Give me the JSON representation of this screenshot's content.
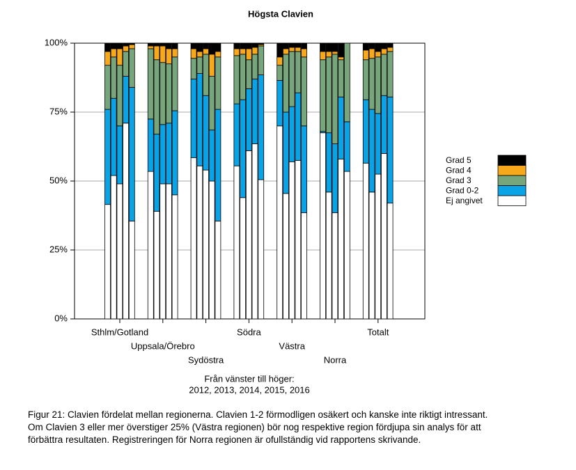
{
  "chart_data": {
    "type": "grouped-stacked-bar",
    "title": "Högsta Clavien",
    "categories": [
      "Sthlm/Gotland",
      "Uppsala/Örebro",
      "Sydöstra",
      "Södra",
      "Västra",
      "Norra",
      "Totalt"
    ],
    "xlabel": [
      "Från vänster till höger:",
      "2012, 2013, 2014, 2015, 2016"
    ],
    "ylim": [
      0,
      100
    ],
    "yticks": [
      {
        "value": 0,
        "label": "0%"
      },
      {
        "value": 25,
        "label": "25%"
      },
      {
        "value": 50,
        "label": "50%"
      },
      {
        "value": 75,
        "label": "75%"
      },
      {
        "value": 100,
        "label": "100%"
      }
    ],
    "grid": true,
    "legend": "right",
    "series": [
      {
        "name": "Ej angivet",
        "color": "#ffffff",
        "values": [
          [
            41.5,
            52,
            49,
            71,
            35.5
          ],
          [
            53.5,
            39,
            49,
            49,
            45
          ],
          [
            58.5,
            55.5,
            54,
            50,
            35.5
          ],
          [
            55.5,
            44,
            61,
            63.5,
            50.5
          ],
          [
            70,
            45.5,
            57,
            57.5,
            38.5
          ],
          [
            67.5,
            46,
            38.5,
            58,
            53.5
          ],
          [
            56.5,
            46,
            52.5,
            60,
            42
          ]
        ]
      },
      {
        "name": "Grad 0-2",
        "color": "#0aa4e6",
        "values": [
          [
            34.5,
            28,
            21,
            17,
            48.5
          ],
          [
            19,
            28,
            21.5,
            22,
            30.5
          ],
          [
            28.5,
            33.5,
            27,
            18.5,
            40.5
          ],
          [
            22.5,
            35.5,
            22.5,
            23.5,
            38
          ],
          [
            16.5,
            29.5,
            20,
            24.5,
            31.5
          ],
          [
            0.5,
            21.5,
            25,
            22.5,
            18
          ],
          [
            23,
            30,
            22,
            21,
            38.5
          ]
        ]
      },
      {
        "name": "Grad 3",
        "color": "#78a67c",
        "values": [
          [
            16,
            15,
            22,
            9,
            14
          ],
          [
            25.5,
            27,
            22.5,
            21.5,
            19.5
          ],
          [
            7.5,
            6,
            15,
            19.5,
            19
          ],
          [
            17.5,
            16.5,
            10.5,
            9,
            10.5
          ],
          [
            5.5,
            21,
            20,
            15,
            25
          ],
          [
            26,
            27.5,
            32.5,
            13.5,
            28.5
          ],
          [
            14.5,
            18.5,
            20.5,
            15,
            16.5
          ]
        ]
      },
      {
        "name": "Grad 4",
        "color": "#f7a81b",
        "values": [
          [
            5,
            3,
            6,
            2,
            1.5
          ],
          [
            1,
            5,
            6,
            5.5,
            3
          ],
          [
            3.5,
            2,
            2,
            8,
            2
          ],
          [
            2.5,
            2,
            4,
            2.5,
            0.5
          ],
          [
            3,
            2,
            1.5,
            1.5,
            3
          ],
          [
            3,
            2,
            1,
            1,
            0
          ],
          [
            3.5,
            3.5,
            2,
            2,
            1.5
          ]
        ]
      },
      {
        "name": "Grad 5",
        "color": "#000000",
        "values": [
          [
            3,
            2,
            2,
            1,
            0.5
          ],
          [
            1,
            1,
            1,
            2,
            2
          ],
          [
            2,
            3,
            2,
            4,
            3
          ],
          [
            2,
            2,
            2,
            1.5,
            0.5
          ],
          [
            5,
            2,
            1.5,
            1.5,
            2
          ],
          [
            3,
            3,
            3,
            5,
            0
          ],
          [
            2.5,
            2,
            3,
            2,
            1.5
          ]
        ]
      }
    ]
  },
  "caption": [
    "Figur 21: Clavien fördelat mellan regionerna. Clavien 1-2 förmodligen osäkert och kanske inte riktigt intressant.",
    "Om Clavien 3 eller mer överstiger 25% (Västra regionen) bör nog respektive region fördjupa sin analys för att",
    "förbättra resultaten. Registreringen för Norra regionen är ofullständig vid rapportens skrivande."
  ]
}
